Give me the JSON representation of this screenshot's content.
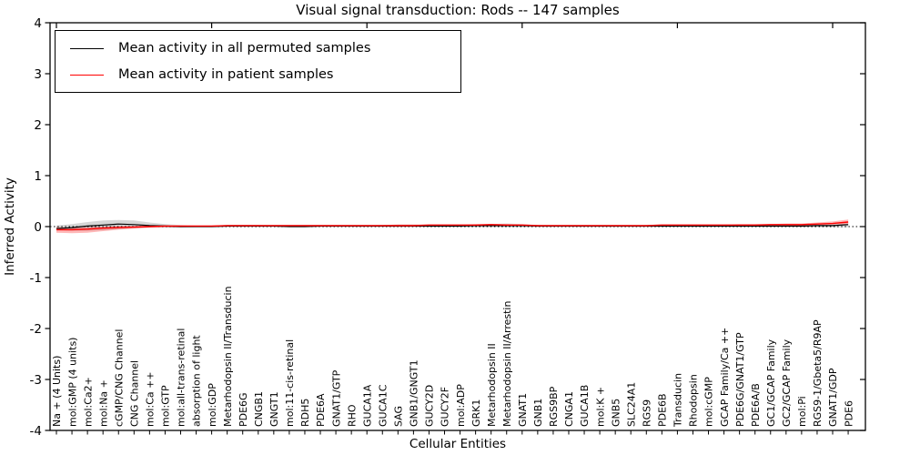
{
  "title": "Visual signal transduction: Rods -- 147 samples",
  "legend": {
    "items": [
      {
        "label": "Mean activity in all permuted samples",
        "color": "#000000"
      },
      {
        "label": "Mean activity in patient samples",
        "color": "#ff0000"
      }
    ]
  },
  "colors": {
    "permuted_line": "#000000",
    "patient_line": "#ff0000",
    "permuted_band": "rgba(0,0,0,0.16)",
    "patient_band": "rgba(255,0,0,0.28)",
    "background": "#ffffff"
  },
  "chart_data": {
    "type": "line",
    "title": "Visual signal transduction: Rods -- 147 samples",
    "xlabel": "Cellular Entities",
    "ylabel": "Inferred Activity",
    "ylim": [
      -4,
      4
    ],
    "y_ticks": [
      4,
      3,
      2,
      1,
      0,
      -1,
      -2,
      -3,
      -4
    ],
    "grid": false,
    "zero_line_style": "dotted",
    "legend_position": "upper left",
    "categories": [
      "Na + (4 Units)",
      "mol:GMP (4 units)",
      "mol:Ca2+",
      "mol:Na +",
      "cGMP/CNG Channel",
      "CNG Channel",
      "mol:Ca ++",
      "mol:GTP",
      "mol:all-trans-retinal",
      "absorption of light",
      "mol:GDP",
      "Metarhodopsin II/Transducin",
      "PDE6G",
      "CNGB1",
      "GNGT1",
      "mol:11-cis-retinal",
      "RDH5",
      "PDE6A",
      "GNAT1/GTP",
      "RHO",
      "GUCA1A",
      "GUCA1C",
      "SAG",
      "GNB1/GNGT1",
      "GUCY2D",
      "GUCY2F",
      "mol:ADP",
      "GRK1",
      "Metarhodopsin II",
      "Metarhodopsin II/Arrestin",
      "GNAT1",
      "GNB1",
      "RGS9BP",
      "CNGA1",
      "GUCA1B",
      "mol:K +",
      "GNB5",
      "SLC24A1",
      "RGS9",
      "PDE6B",
      "Transducin",
      "Rhodopsin",
      "mol:cGMP",
      "GCAP Family/Ca ++",
      "PDE6G/GNAT1/GTP",
      "PDE6A/B",
      "GC1/GCAP Family",
      "GC2/GCAP Family",
      "mol:Pi",
      "RGS9-1/Gbeta5/R9AP",
      "GNAT1/GDP",
      "PDE6"
    ],
    "series": [
      {
        "name": "Mean activity in all permuted samples",
        "color": "#000000",
        "band_color": "rgba(0,0,0,0.16)",
        "values": [
          -0.04,
          -0.02,
          0.01,
          0.03,
          0.05,
          0.04,
          0.02,
          0.01,
          0.0,
          0.0,
          0.0,
          0.01,
          0.01,
          0.01,
          0.01,
          0.0,
          0.0,
          0.01,
          0.01,
          0.01,
          0.01,
          0.01,
          0.01,
          0.01,
          0.01,
          0.01,
          0.01,
          0.02,
          0.02,
          0.02,
          0.02,
          0.01,
          0.01,
          0.01,
          0.01,
          0.01,
          0.01,
          0.01,
          0.01,
          0.01,
          0.01,
          0.01,
          0.01,
          0.01,
          0.01,
          0.01,
          0.01,
          0.01,
          0.01,
          0.02,
          0.02,
          0.04
        ],
        "band_hi": [
          0.02,
          0.05,
          0.09,
          0.12,
          0.13,
          0.12,
          0.08,
          0.05,
          0.03,
          0.02,
          0.02,
          0.03,
          0.03,
          0.03,
          0.02,
          0.02,
          0.02,
          0.02,
          0.02,
          0.02,
          0.02,
          0.03,
          0.04,
          0.04,
          0.03,
          0.02,
          0.02,
          0.03,
          0.05,
          0.06,
          0.05,
          0.03,
          0.02,
          0.02,
          0.02,
          0.02,
          0.02,
          0.02,
          0.02,
          0.02,
          0.02,
          0.02,
          0.02,
          0.02,
          0.02,
          0.02,
          0.02,
          0.02,
          0.02,
          0.03,
          0.04,
          0.06
        ],
        "band_lo": [
          -0.07,
          -0.08,
          -0.08,
          -0.07,
          -0.05,
          -0.03,
          -0.02,
          -0.02,
          -0.02,
          -0.01,
          -0.01,
          -0.01,
          -0.01,
          -0.01,
          -0.01,
          -0.01,
          -0.01,
          -0.01,
          -0.01,
          -0.01,
          -0.01,
          -0.01,
          -0.01,
          -0.01,
          -0.01,
          -0.01,
          -0.01,
          -0.01,
          -0.01,
          -0.01,
          -0.01,
          -0.01,
          -0.01,
          -0.01,
          -0.01,
          -0.01,
          -0.01,
          -0.01,
          -0.01,
          -0.01,
          -0.01,
          -0.01,
          -0.01,
          -0.01,
          -0.01,
          -0.01,
          -0.01,
          -0.01,
          -0.01,
          -0.01,
          -0.01,
          -0.01
        ]
      },
      {
        "name": "Mean activity in patient samples",
        "color": "#ff0000",
        "band_color": "rgba(255,0,0,0.28)",
        "values": [
          -0.06,
          -0.06,
          -0.05,
          -0.03,
          -0.02,
          -0.01,
          0.0,
          0.01,
          0.01,
          0.01,
          0.01,
          0.02,
          0.02,
          0.02,
          0.02,
          0.02,
          0.02,
          0.02,
          0.02,
          0.02,
          0.02,
          0.02,
          0.02,
          0.02,
          0.03,
          0.03,
          0.03,
          0.03,
          0.04,
          0.03,
          0.03,
          0.02,
          0.02,
          0.02,
          0.02,
          0.02,
          0.02,
          0.02,
          0.02,
          0.03,
          0.03,
          0.03,
          0.03,
          0.03,
          0.03,
          0.03,
          0.04,
          0.04,
          0.04,
          0.05,
          0.06,
          0.09
        ],
        "band_hi": [
          -0.01,
          -0.02,
          -0.01,
          0.0,
          0.01,
          0.01,
          0.02,
          0.02,
          0.02,
          0.02,
          0.02,
          0.03,
          0.03,
          0.03,
          0.03,
          0.03,
          0.03,
          0.03,
          0.03,
          0.03,
          0.03,
          0.03,
          0.04,
          0.04,
          0.04,
          0.04,
          0.04,
          0.05,
          0.05,
          0.05,
          0.04,
          0.03,
          0.03,
          0.03,
          0.03,
          0.03,
          0.03,
          0.03,
          0.03,
          0.04,
          0.04,
          0.04,
          0.04,
          0.04,
          0.05,
          0.05,
          0.05,
          0.06,
          0.06,
          0.08,
          0.1,
          0.14
        ],
        "band_lo": [
          -0.12,
          -0.13,
          -0.12,
          -0.09,
          -0.06,
          -0.04,
          -0.02,
          -0.01,
          -0.01,
          0.0,
          0.0,
          0.01,
          0.01,
          0.01,
          0.01,
          0.01,
          0.01,
          0.01,
          0.01,
          0.01,
          0.01,
          0.01,
          0.01,
          0.01,
          0.01,
          0.01,
          0.01,
          0.02,
          0.02,
          0.02,
          0.01,
          0.01,
          0.01,
          0.01,
          0.01,
          0.01,
          0.01,
          0.01,
          0.01,
          0.01,
          0.01,
          0.01,
          0.01,
          0.01,
          0.01,
          0.01,
          0.01,
          0.01,
          0.01,
          0.03,
          0.04,
          0.05
        ]
      }
    ]
  }
}
